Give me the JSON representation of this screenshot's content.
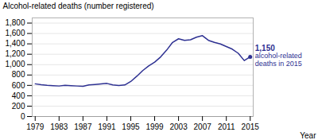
{
  "chart_data": {
    "type": "line",
    "xlabel": "Year",
    "ylabel": "Alcohol-related deaths (number registered)",
    "x": [
      1979,
      1980,
      1981,
      1982,
      1983,
      1984,
      1985,
      1986,
      1987,
      1988,
      1989,
      1990,
      1991,
      1992,
      1993,
      1994,
      1995,
      1996,
      1997,
      1998,
      1999,
      2000,
      2001,
      2002,
      2003,
      2004,
      2005,
      2006,
      2007,
      2008,
      2009,
      2010,
      2011,
      2012,
      2013,
      2014,
      2015
    ],
    "values": [
      630,
      612,
      600,
      595,
      588,
      603,
      595,
      588,
      582,
      608,
      618,
      628,
      638,
      608,
      598,
      608,
      675,
      775,
      885,
      975,
      1048,
      1148,
      1278,
      1428,
      1498,
      1468,
      1478,
      1528,
      1558,
      1468,
      1428,
      1398,
      1348,
      1298,
      1218,
      1078,
      1150
    ],
    "color": "#2e3192",
    "annotations": [
      "1,150",
      "alcohol-related",
      "deaths in 2015"
    ],
    "xlim": [
      1978.5,
      2015.5
    ],
    "ylim": [
      0,
      1900
    ],
    "xticks": [
      1979,
      1983,
      1987,
      1991,
      1995,
      1999,
      2003,
      2007,
      2011,
      2015
    ],
    "yticks": [
      0,
      200,
      400,
      600,
      800,
      {
        "value": 1000,
        "label": "1,000"
      },
      {
        "value": 1200,
        "label": "1,200"
      },
      {
        "value": 1400,
        "label": "1,400"
      },
      {
        "value": 1600,
        "label": "1,600"
      },
      {
        "value": 1800,
        "label": "1,800"
      }
    ],
    "grid": true
  }
}
